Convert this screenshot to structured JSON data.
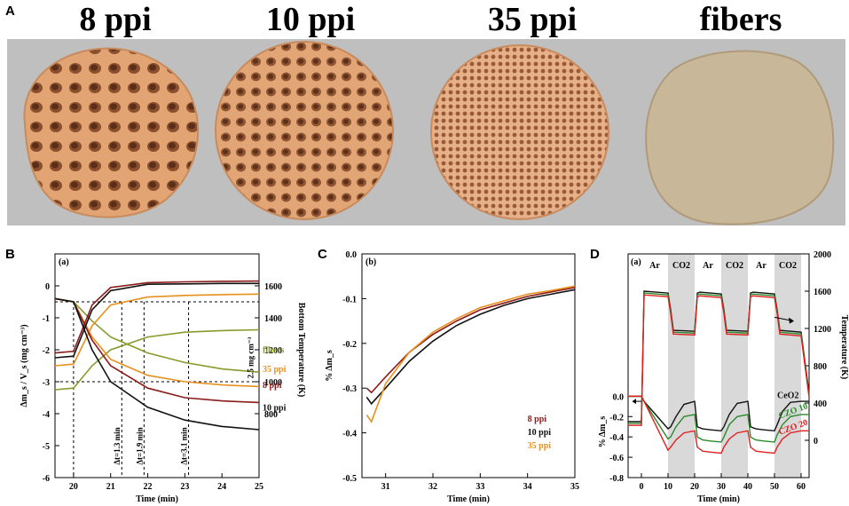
{
  "panel_a": {
    "letter": "A",
    "samples": [
      {
        "title": "8 ppi",
        "color": "#e3a474"
      },
      {
        "title": "10 ppi",
        "color": "#e2a676"
      },
      {
        "title": "35 ppi",
        "color": "#e0a67a"
      },
      {
        "title": "fibers",
        "color": "#c9b79a"
      }
    ]
  },
  "chart_data": [
    {
      "id": "B",
      "letter": "B",
      "tag": "(a)",
      "type": "line",
      "xlabel": "Time (min)",
      "ylabel_left": "Δm_s / V_s (mg cm⁻³)",
      "ylabel_right": "Bottom Temperature (K)",
      "xlim": [
        19.5,
        25
      ],
      "ylim_left": [
        -6,
        1
      ],
      "ylim_right": [
        400,
        1800
      ],
      "xticks": [
        20,
        21,
        22,
        23,
        24,
        25
      ],
      "yticks_left": [
        0,
        -1,
        -2,
        -3,
        -4,
        -5,
        -6
      ],
      "yticks_right": [
        800,
        1000,
        1200,
        1400,
        1600
      ],
      "annotations": [
        "Δt=1.3 min",
        "Δt=1.9 min",
        "Δt=3.1 min",
        "2.5 mg cm⁻³"
      ],
      "series": [
        {
          "name": "fibers",
          "color": "#8a9a2a",
          "mass_x": [
            19.5,
            20,
            20.5,
            21,
            22,
            23,
            24,
            25
          ],
          "mass_y": [
            -0.4,
            -0.5,
            -1.1,
            -1.6,
            -2.1,
            -2.4,
            -2.6,
            -2.7
          ],
          "temp_x": [
            19.5,
            20,
            20.5,
            21,
            22,
            23,
            24,
            25
          ],
          "temp_y": [
            950,
            960,
            1100,
            1200,
            1280,
            1310,
            1320,
            1325
          ]
        },
        {
          "name": "35 ppi",
          "color": "#e8901e",
          "mass_x": [
            19.5,
            20,
            20.5,
            21,
            22,
            23,
            24,
            25
          ],
          "mass_y": [
            -0.4,
            -0.5,
            -1.6,
            -2.3,
            -2.8,
            -3.0,
            -3.1,
            -3.15
          ],
          "temp_x": [
            19.5,
            20,
            20.5,
            21,
            22,
            23,
            24,
            25
          ],
          "temp_y": [
            1100,
            1110,
            1350,
            1480,
            1530,
            1540,
            1545,
            1548
          ]
        },
        {
          "name": "8 ppi",
          "color": "#8b1a1a",
          "mass_x": [
            19.5,
            20,
            20.5,
            21,
            22,
            23,
            24,
            25
          ],
          "mass_y": [
            -0.4,
            -0.5,
            -1.7,
            -2.5,
            -3.2,
            -3.5,
            -3.6,
            -3.65
          ],
          "temp_x": [
            19.5,
            20,
            20.5,
            21,
            22,
            23,
            24,
            25
          ],
          "temp_y": [
            1180,
            1190,
            1480,
            1590,
            1620,
            1625,
            1628,
            1630
          ]
        },
        {
          "name": "10 ppi",
          "color": "#111111",
          "mass_x": [
            19.5,
            20,
            20.5,
            21,
            22,
            23,
            24,
            25
          ],
          "mass_y": [
            -0.4,
            -0.5,
            -2.0,
            -3.0,
            -3.8,
            -4.2,
            -4.4,
            -4.5
          ],
          "temp_x": [
            19.5,
            20,
            20.5,
            21,
            22,
            23,
            24,
            25
          ],
          "temp_y": [
            1150,
            1160,
            1450,
            1570,
            1610,
            1612,
            1615,
            1615
          ]
        }
      ]
    },
    {
      "id": "C",
      "letter": "C",
      "tag": "(b)",
      "type": "line",
      "xlabel": "Time (min)",
      "ylabel": "% Δm_s",
      "xlim": [
        30.5,
        35
      ],
      "ylim": [
        -0.5,
        0
      ],
      "xticks": [
        31,
        32,
        33,
        34,
        35
      ],
      "yticks": [
        0.0,
        -0.1,
        -0.2,
        -0.3,
        -0.4,
        -0.5
      ],
      "series": [
        {
          "name": "8 ppi",
          "color": "#8b1a1a",
          "x": [
            30.6,
            30.7,
            31,
            31.5,
            32,
            32.5,
            33,
            33.5,
            34,
            34.5,
            35
          ],
          "y": [
            -0.3,
            -0.31,
            -0.275,
            -0.22,
            -0.18,
            -0.15,
            -0.125,
            -0.11,
            -0.095,
            -0.085,
            -0.075
          ]
        },
        {
          "name": "10 ppi",
          "color": "#111111",
          "x": [
            30.6,
            30.7,
            31,
            31.5,
            32,
            32.5,
            33,
            33.5,
            34,
            34.5,
            35
          ],
          "y": [
            -0.32,
            -0.335,
            -0.3,
            -0.24,
            -0.195,
            -0.16,
            -0.135,
            -0.115,
            -0.1,
            -0.09,
            -0.08
          ]
        },
        {
          "name": "35 ppi",
          "color": "#e8901e",
          "x": [
            30.6,
            30.7,
            31,
            31.5,
            32,
            32.5,
            33,
            33.5,
            34,
            34.5,
            35
          ],
          "y": [
            -0.36,
            -0.375,
            -0.29,
            -0.22,
            -0.175,
            -0.145,
            -0.12,
            -0.105,
            -0.09,
            -0.082,
            -0.072
          ]
        }
      ]
    },
    {
      "id": "D",
      "letter": "D",
      "tag": "(a)",
      "type": "line",
      "xlabel": "Time (min)",
      "ylabel_left": "% Δm_s",
      "ylabel_right": "Temperature (K)",
      "xlim": [
        -5,
        63
      ],
      "ylim_left": [
        -0.8,
        1.4
      ],
      "ylim_right": [
        -400,
        2000
      ],
      "xticks": [
        0,
        10,
        20,
        30,
        40,
        50,
        60
      ],
      "yticks_left": [
        0.0,
        -0.2,
        -0.4,
        -0.6,
        -0.8
      ],
      "yticks_right": [
        0,
        400,
        800,
        1200,
        1600,
        2000
      ],
      "gas_labels": [
        "Ar",
        "CO2",
        "Ar",
        "CO2",
        "Ar",
        "CO2"
      ],
      "shaded_intervals": [
        [
          10,
          20
        ],
        [
          30,
          40
        ],
        [
          50,
          60
        ]
      ],
      "series": [
        {
          "name": "CeO2",
          "color": "#111111",
          "x": [
            -5,
            0,
            1,
            10,
            11,
            13,
            16,
            20,
            21,
            23,
            26,
            30,
            31,
            33,
            36,
            40,
            41,
            43,
            46,
            50,
            51,
            53,
            56,
            60,
            63
          ],
          "y": [
            0.0,
            0.0,
            -0.05,
            -0.32,
            -0.3,
            -0.2,
            -0.08,
            -0.05,
            -0.3,
            -0.32,
            -0.33,
            -0.34,
            -0.3,
            -0.18,
            -0.07,
            -0.05,
            -0.3,
            -0.32,
            -0.33,
            -0.34,
            -0.28,
            -0.15,
            -0.06,
            -0.05,
            -0.05
          ]
        },
        {
          "name": "CZO 10",
          "color": "#2a8a2a",
          "x": [
            -5,
            0,
            1,
            10,
            11,
            13,
            16,
            20,
            21,
            23,
            26,
            30,
            31,
            33,
            36,
            40,
            41,
            43,
            46,
            50,
            51,
            53,
            56,
            60,
            63
          ],
          "y": [
            0.0,
            0.0,
            -0.05,
            -0.42,
            -0.4,
            -0.3,
            -0.2,
            -0.18,
            -0.4,
            -0.43,
            -0.44,
            -0.45,
            -0.4,
            -0.28,
            -0.2,
            -0.18,
            -0.4,
            -0.43,
            -0.44,
            -0.45,
            -0.38,
            -0.28,
            -0.2,
            -0.18,
            -0.18
          ]
        },
        {
          "name": "CZO 20",
          "color": "#e02020",
          "x": [
            -5,
            0,
            1,
            10,
            11,
            13,
            16,
            20,
            21,
            23,
            26,
            30,
            31,
            33,
            36,
            40,
            41,
            43,
            46,
            50,
            51,
            53,
            56,
            60,
            63
          ],
          "y": [
            0.0,
            0.0,
            -0.05,
            -0.53,
            -0.5,
            -0.43,
            -0.36,
            -0.34,
            -0.5,
            -0.54,
            -0.55,
            -0.56,
            -0.5,
            -0.42,
            -0.36,
            -0.34,
            -0.5,
            -0.54,
            -0.55,
            -0.56,
            -0.5,
            -0.42,
            -0.36,
            -0.34,
            -0.34
          ]
        }
      ],
      "temperature_series": {
        "x": [
          -5,
          0,
          1,
          10,
          11,
          12,
          20,
          21,
          22,
          30,
          31,
          32,
          40,
          41,
          42,
          50,
          51,
          52,
          60,
          63
        ],
        "y": [
          200,
          200,
          1600,
          1580,
          1400,
          1180,
          1170,
          1580,
          1590,
          1570,
          1400,
          1180,
          1170,
          1580,
          1590,
          1570,
          1400,
          1180,
          1160,
          500
        ]
      }
    }
  ]
}
